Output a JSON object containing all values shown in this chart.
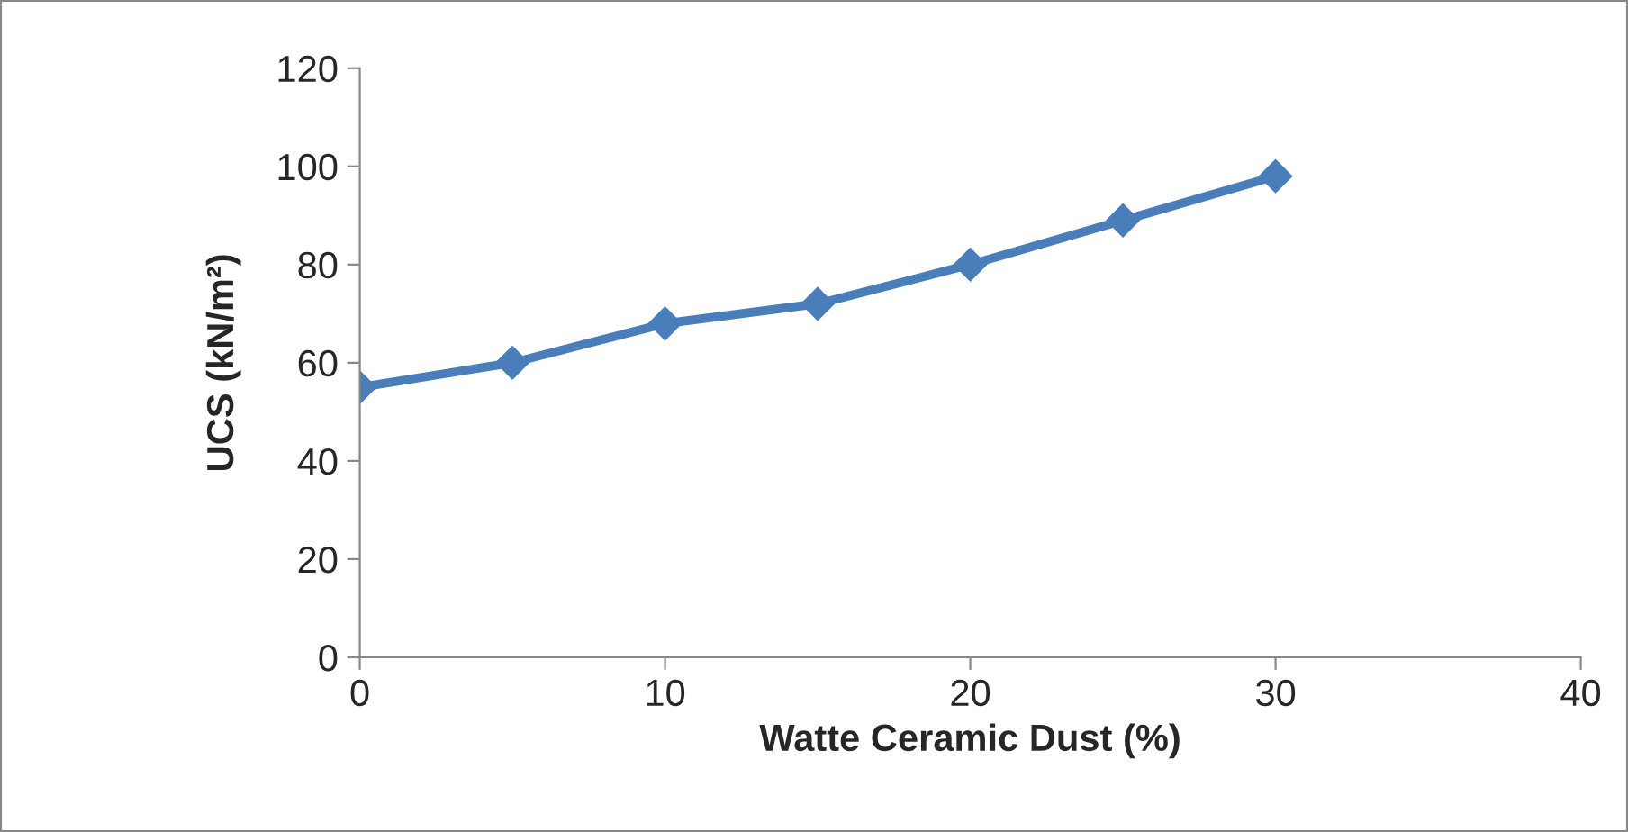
{
  "chart_data": {
    "type": "line",
    "xlabel": "Watte Ceramic Dust (%)",
    "ylabel": "UCS (kN/m²)",
    "x": [
      0,
      5,
      10,
      15,
      20,
      25,
      30
    ],
    "series": [
      {
        "color": "#4a7ebb",
        "values": [
          55,
          60,
          68,
          72,
          80,
          89,
          98
        ]
      }
    ],
    "xlim": [
      0,
      40
    ],
    "xticks": [
      0,
      10,
      20,
      30,
      40
    ],
    "ylim": [
      0,
      120
    ],
    "yticks": [
      0,
      20,
      40,
      60,
      80,
      100,
      120
    ],
    "grid": false,
    "marker": "diamond",
    "line_style": "solid"
  }
}
